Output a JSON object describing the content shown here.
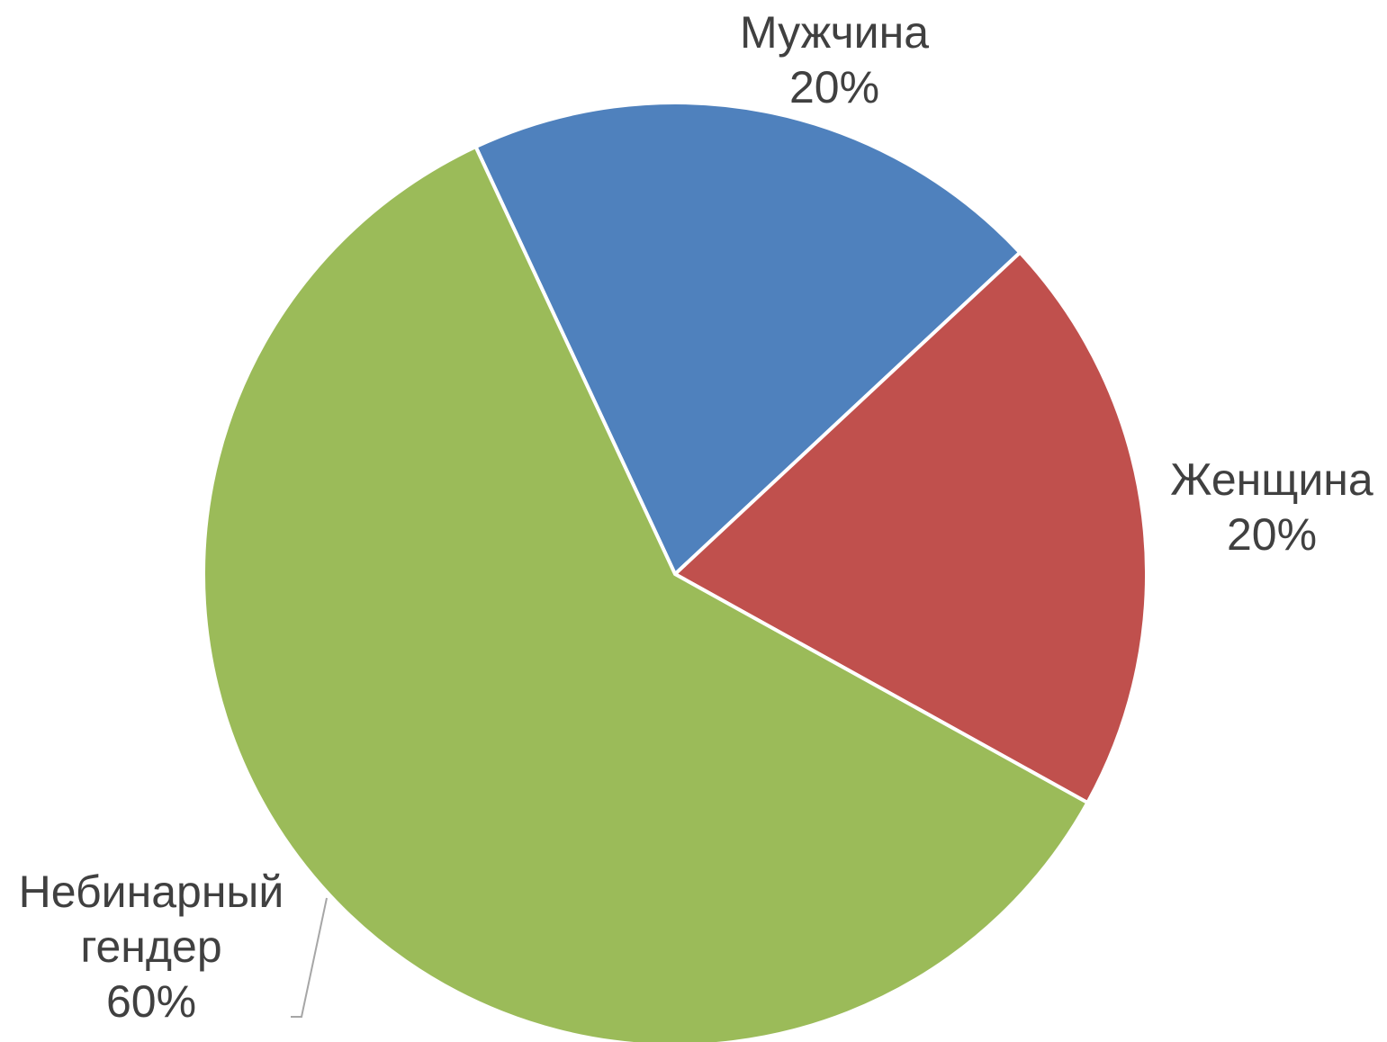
{
  "chart_data": {
    "type": "pie",
    "categories": [
      "Мужчина",
      "Женщина",
      "Небинарный гендер"
    ],
    "values": [
      20,
      20,
      60
    ],
    "value_labels": [
      "20%",
      "20%",
      "60%"
    ],
    "colors": [
      "#4f81bd",
      "#c0504d",
      "#9bbb59"
    ]
  }
}
